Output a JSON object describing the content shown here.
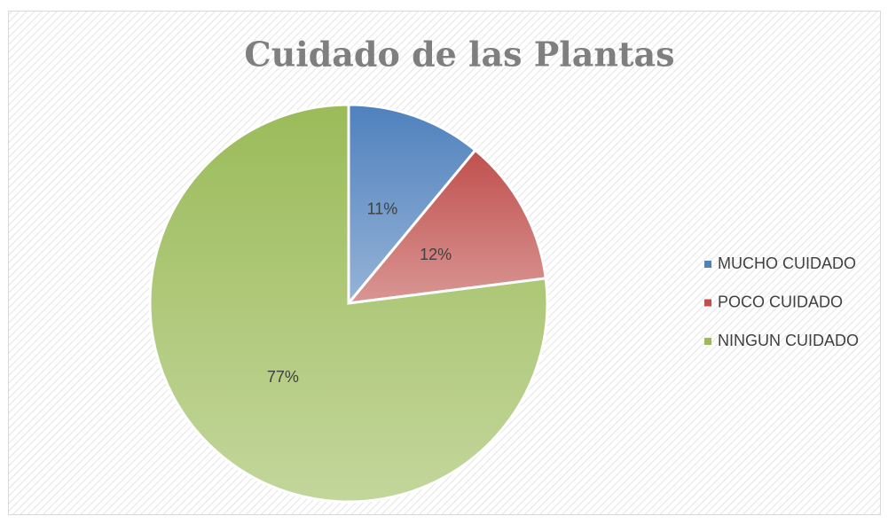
{
  "chart_data": {
    "type": "pie",
    "title": "Cuidado de las Plantas",
    "categories": [
      "MUCHO CUIDADO",
      "POCO CUIDADO",
      "NINGUN CUIDADO"
    ],
    "values": [
      11,
      12,
      77
    ],
    "value_labels": [
      "11%",
      "12%",
      "77%"
    ],
    "colors": [
      "#4f81bd",
      "#c0504d",
      "#9bbb59"
    ],
    "legend": "right"
  }
}
